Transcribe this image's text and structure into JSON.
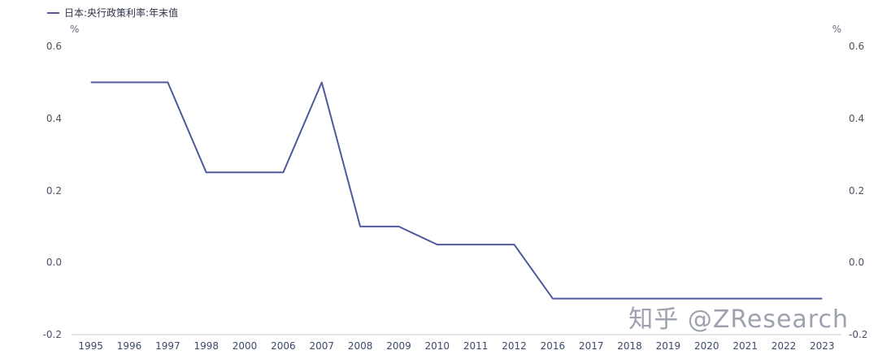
{
  "legend": {
    "label": "日本:央行政策利率:年末值"
  },
  "axis_units": {
    "left": "%",
    "right": "%"
  },
  "watermark": "知乎 @ZResearch",
  "colors": {
    "line": "#4e5a9c",
    "axis_line": "#c9ccd4",
    "y_tick_text": "#4c5260",
    "x_tick_text": "#3e4a6b",
    "watermark": "#8c92a0"
  },
  "chart_data": {
    "type": "line",
    "title": "",
    "xlabel": "",
    "ylabel": "%",
    "ylim": [
      -0.2,
      0.6
    ],
    "yticks": [
      0.6,
      0.4,
      0.2,
      0.0,
      -0.2
    ],
    "ytick_labels": [
      "0.6",
      "0.4",
      "0.2",
      "0.0",
      "-0.2"
    ],
    "grid": false,
    "legend_position": "top-left",
    "categories": [
      "1995",
      "1996",
      "1997",
      "1998",
      "2000",
      "2006",
      "2007",
      "2008",
      "2009",
      "2010",
      "2011",
      "2012",
      "2016",
      "2017",
      "2018",
      "2019",
      "2020",
      "2021",
      "2022",
      "2023"
    ],
    "series": [
      {
        "name": "日本:央行政策利率:年末值",
        "color": "#4e5a9c",
        "values": [
          0.5,
          0.5,
          0.5,
          0.25,
          0.25,
          0.25,
          0.5,
          0.1,
          0.1,
          0.05,
          0.05,
          0.05,
          -0.1,
          -0.1,
          -0.1,
          -0.1,
          -0.1,
          -0.1,
          -0.1,
          -0.1
        ]
      }
    ]
  }
}
